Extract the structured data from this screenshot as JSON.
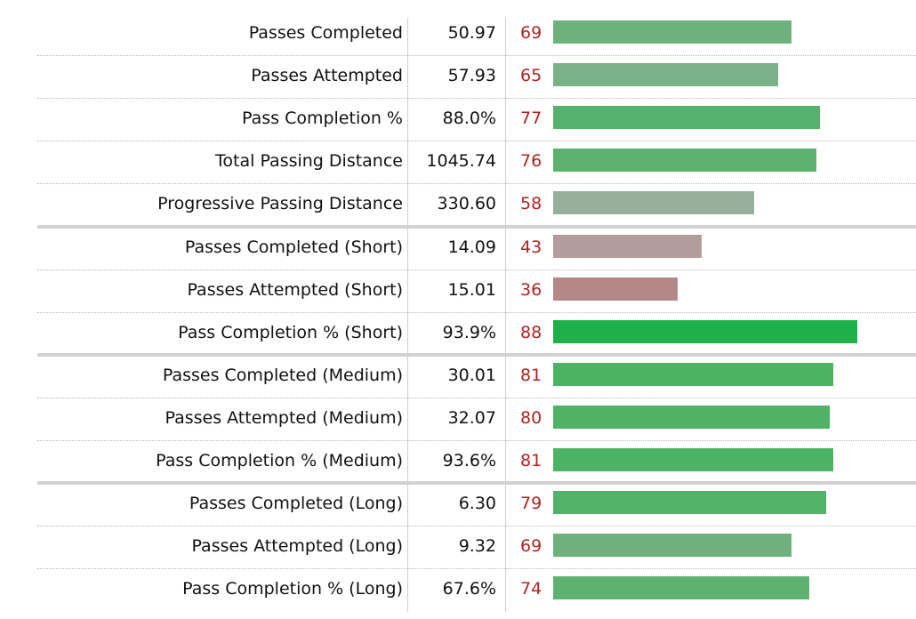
{
  "chart_data": {
    "type": "bar",
    "xlim": [
      0,
      100
    ],
    "groups": [
      {
        "rows": [
          {
            "label": "Passes Completed",
            "value": "50.97",
            "percentile": 69,
            "color": "#6db27c"
          },
          {
            "label": "Passes Attempted",
            "value": "57.93",
            "percentile": 65,
            "color": "#7bb186"
          },
          {
            "label": "Pass Completion %",
            "value": "88.0%",
            "percentile": 77,
            "color": "#57b26b"
          },
          {
            "label": "Total Passing Distance",
            "value": "1045.74",
            "percentile": 76,
            "color": "#5ab26d"
          },
          {
            "label": "Progressive Passing Distance",
            "value": "330.60",
            "percentile": 58,
            "color": "#97b09b"
          }
        ]
      },
      {
        "rows": [
          {
            "label": "Passes Completed (Short)",
            "value": "14.09",
            "percentile": 43,
            "color": "#b39c9c"
          },
          {
            "label": "Passes Attempted (Short)",
            "value": "15.01",
            "percentile": 36,
            "color": "#b58888"
          },
          {
            "label": "Pass Completion % (Short)",
            "value": "93.9%",
            "percentile": 88,
            "color": "#1db04b"
          }
        ]
      },
      {
        "rows": [
          {
            "label": "Passes Completed (Medium)",
            "value": "30.01",
            "percentile": 81,
            "color": "#4cb264"
          },
          {
            "label": "Passes Attempted (Medium)",
            "value": "32.07",
            "percentile": 80,
            "color": "#4fb265"
          },
          {
            "label": "Pass Completion % (Medium)",
            "value": "93.6%",
            "percentile": 81,
            "color": "#4cb264"
          }
        ]
      },
      {
        "rows": [
          {
            "label": "Passes Completed (Long)",
            "value": "6.30",
            "percentile": 79,
            "color": "#52b268"
          },
          {
            "label": "Passes Attempted (Long)",
            "value": "9.32",
            "percentile": 69,
            "color": "#6db27c"
          },
          {
            "label": "Pass Completion % (Long)",
            "value": "67.6%",
            "percentile": 74,
            "color": "#5eb270"
          }
        ]
      }
    ]
  }
}
